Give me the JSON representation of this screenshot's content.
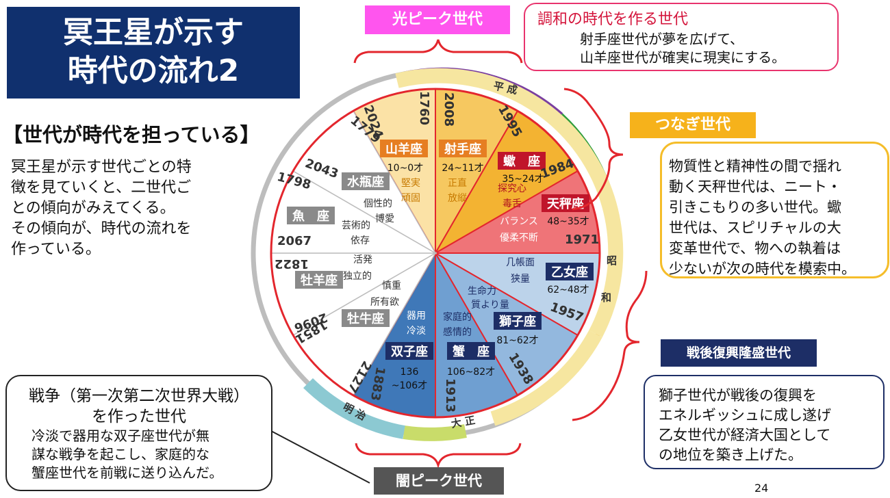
{
  "title": {
    "line1": "冥王星が示す",
    "line2": "時代の流れ2"
  },
  "heading": "【世代が時代を担っている】",
  "intro": [
    "冥王星が示す世代ごとの特",
    "徴を見ていくと、二世代ご",
    "との傾向がみえてくる。",
    "その傾向が、時代の流れを",
    "作っている。"
  ],
  "war_box": {
    "title1": "戦争（第一次第二次世界大戦）",
    "title2": "を作った世代",
    "body": [
      "冷淡で器用な双子座世代が無",
      "謀な戦争を起こし、家庭的な",
      "蟹座世代を前戦に送り込んだ。"
    ]
  },
  "tags": {
    "light_peak": "光ピーク世代",
    "dark_peak": "闇ピーク世代",
    "connect": "つなぎ世代",
    "postwar": "戦後復興隆盛世代"
  },
  "harmony_box": {
    "title": "調和の時代を作る世代",
    "body": [
      "射手座世代が夢を広げて、",
      "山羊座世代が確実に現実にする。"
    ]
  },
  "libra_box": [
    "物質性と精神性の間で揺れ",
    "動く天秤世代は、ニート・",
    "引きこもりの多い世代。蠍",
    "世代は、スピリチャルの大",
    "変革世代で、物への執着は",
    "少ないが次の時代を模索中。"
  ],
  "leo_box": [
    "獅子世代が戦後の復興を",
    "エネルギッシュに成し遂げ",
    "乙女世代が経済大国として",
    "の地位を築き上げた。"
  ],
  "page_number": "24",
  "eras": {
    "heisei": "平 成",
    "showa_1": "昭",
    "showa_2": "和",
    "taisho": "大 正",
    "meiji": "明 治"
  },
  "colors": {
    "navy": "#10306e",
    "light_peak": "#ff55ee",
    "connect": "#f6b21b",
    "capricorn": "#fbe2a6",
    "sagittarius": "#f6c860",
    "scorpio": "#f3b332",
    "libra": "#ef7478",
    "virgo": "#bcd3ea",
    "leo": "#93b8de",
    "cancer": "#6f9fd1",
    "gemini": "#3f78b8"
  },
  "wheel": {
    "signs": [
      {
        "name": "山羊座",
        "age": "10~0才",
        "traits": [
          "堅実",
          "頑固"
        ],
        "years": [
          "2008",
          "2024"
        ]
      },
      {
        "name": "射手座",
        "age": "24~11才",
        "traits": [
          "正直",
          "放縦"
        ],
        "years": [
          "1995",
          "2008"
        ]
      },
      {
        "name": "蠍　座",
        "age": "35~24才",
        "traits": [
          "探究心",
          "毒舌"
        ],
        "years": [
          "1984",
          "1995"
        ]
      },
      {
        "name": "天秤座",
        "age": "48~35才",
        "traits": [
          "バランス",
          "優柔不断"
        ],
        "years": [
          "1971",
          "1984"
        ]
      },
      {
        "name": "乙女座",
        "age": "62~48才",
        "traits": [
          "几帳面",
          "狭量"
        ],
        "years": [
          "1957",
          "1971"
        ]
      },
      {
        "name": "獅子座",
        "age": "81~62才",
        "traits": [
          "生命力",
          "質より量"
        ],
        "years": [
          "1938",
          "1957"
        ]
      },
      {
        "name": "蟹　座",
        "age": "106~82才",
        "traits": [
          "家庭的",
          "感情的"
        ],
        "years": [
          "1913",
          "1938"
        ]
      },
      {
        "name": "双子座",
        "age_line1": "136",
        "age_line2": "~106才",
        "traits": [
          "器用",
          "冷淡"
        ],
        "years": [
          "1883",
          "1913"
        ]
      },
      {
        "name": "牡牛座",
        "traits": [
          "慎重",
          "所有欲"
        ],
        "years": [
          "2127",
          "1851"
        ]
      },
      {
        "name": "牡羊座",
        "traits": [
          "活発",
          "独立的"
        ],
        "years": [
          "2096",
          "1822"
        ]
      },
      {
        "name": "魚　座",
        "traits": [
          "芸術的",
          "依存"
        ],
        "years": [
          "2067",
          "1798"
        ]
      },
      {
        "name": "水瓶座",
        "traits": [
          "個性的",
          "博愛"
        ],
        "years": [
          "2043",
          "1779"
        ]
      }
    ],
    "outer_years": {
      "capricorn_start": "1760"
    }
  }
}
